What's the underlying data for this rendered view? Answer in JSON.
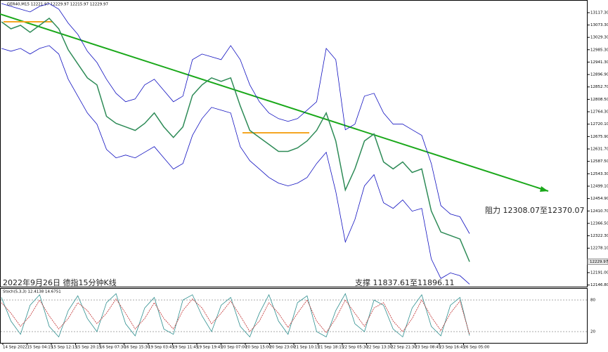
{
  "chart_data": {
    "type": "line",
    "title": "GER40,M15 12221.97 12229.97 12215.97 12229.97",
    "annotations": [
      "2022年9月26日 德指15分钟K线",
      "支撑 11837.61至11896.11",
      "阻力 12308.07至12370.07"
    ],
    "current_price": {
      "value": 12229.97,
      "label": "12229.97"
    },
    "ylim": [
      12141,
      13160
    ],
    "yticks": [
      {
        "value": 13117.3,
        "label": "13117.30"
      },
      {
        "value": 13073.3,
        "label": "13073.30"
      },
      {
        "value": 13029.3,
        "label": "13029.30"
      },
      {
        "value": 12985.3,
        "label": "12985.30"
      },
      {
        "value": 12941.3,
        "label": "12941.30"
      },
      {
        "value": 12896.9,
        "label": "12896.90"
      },
      {
        "value": 12852.7,
        "label": "12852.70"
      },
      {
        "value": 12808.5,
        "label": "12808.50"
      },
      {
        "value": 12764.3,
        "label": "12764.30"
      },
      {
        "value": 12720.1,
        "label": "12720.10"
      },
      {
        "value": 12675.9,
        "label": "12675.90"
      },
      {
        "value": 12631.7,
        "label": "12631.70"
      },
      {
        "value": 12587.5,
        "label": "12587.50"
      },
      {
        "value": 12543.3,
        "label": "12543.30"
      },
      {
        "value": 12499.1,
        "label": "12499.10"
      },
      {
        "value": 12454.9,
        "label": "12454.90"
      },
      {
        "value": 12410.7,
        "label": "12410.70"
      },
      {
        "value": 12366.5,
        "label": "12366.50"
      },
      {
        "value": 12322.3,
        "label": "12322.30"
      },
      {
        "value": 12278.1,
        "label": "12278.10"
      },
      {
        "value": 12191,
        "label": "12191.00"
      },
      {
        "value": 12146.8,
        "label": "12146.80"
      }
    ],
    "x_labels": [
      "14 Sep 2022",
      "15 Sep 04:15",
      "15 Sep 12:15",
      "15 Sep 20:15",
      "16 Sep 07:30",
      "16 Sep 15:30",
      "19 Sep 03:45",
      "19 Sep 11:45",
      "19 Sep 19:45",
      "20 Sep 07:00",
      "20 Sep 15:00",
      "20 Sep 23:00",
      "21 Sep 10:15",
      "21 Sep 18:15",
      "22 Sep 05:30",
      "22 Sep 13:30",
      "22 Sep 21:30",
      "23 Sep 08:45",
      "23 Sep 16:45",
      "26 Sep 05:00"
    ],
    "series": [
      {
        "name": "GER40,M15",
        "color": "#2e8b57",
        "values": [
          13084.8,
          13059.9,
          13072.4,
          13047.4,
          13072.4,
          13097.3,
          13059.9,
          12985,
          12935,
          12885.1,
          12860.1,
          12747.8,
          12722.8,
          12710.3,
          12697.8,
          12722.8,
          12760.2,
          12710.3,
          12672.8,
          12710.3,
          12822.7,
          12860.1,
          12885.1,
          12872.6,
          12885.1,
          12785.2,
          12697.8,
          12672.8,
          12647.9,
          12622.9,
          12622.9,
          12635.4,
          12660.3,
          12697.8,
          12760.2,
          12660.3,
          12485.5,
          12560.5,
          12660.3,
          12685.3,
          12585.4,
          12560.5,
          12585.4,
          12547.9,
          12560.5,
          12410.6,
          12335.8,
          12323.3,
          12310.8,
          12229.97
        ]
      },
      {
        "name": "Upper",
        "color": "#1010c0",
        "values": [
          13150,
          13140,
          13130,
          13120,
          13140,
          13150,
          13130,
          13080,
          13040,
          12980,
          12940,
          12880,
          12830,
          12800,
          12810,
          12860,
          12880,
          12840,
          12800,
          12820,
          12950,
          12970,
          12960,
          12950,
          13000,
          12950,
          12860,
          12800,
          12760,
          12740,
          12730,
          12740,
          12770,
          12800,
          12990,
          12950,
          12700,
          12720,
          12820,
          12830,
          12760,
          12720,
          12720,
          12700,
          12680,
          12580,
          12430,
          12400,
          12390,
          12330
        ]
      },
      {
        "name": "Lower",
        "color": "#1010c0",
        "values": [
          12990,
          12980,
          12990,
          12970,
          12990,
          13000,
          12970,
          12880,
          12820,
          12760,
          12720,
          12630,
          12600,
          12610,
          12600,
          12620,
          12640,
          12600,
          12560,
          12580,
          12680,
          12740,
          12780,
          12770,
          12760,
          12640,
          12590,
          12560,
          12530,
          12510,
          12500,
          12510,
          12530,
          12580,
          12620,
          12480,
          12300,
          12380,
          12500,
          12540,
          12440,
          12420,
          12450,
          12410,
          12420,
          12240,
          12170,
          12190,
          12180,
          12150
        ]
      }
    ],
    "stoch": {
      "label": "Stoch(5,3,3) 12.4138 14.6751",
      "ylim": [
        0,
        100
      ],
      "yticks": [
        80,
        20
      ],
      "series": [
        {
          "name": "Main",
          "color": "#2f8f8f",
          "values": [
            85,
            40,
            15,
            70,
            90,
            30,
            10,
            60,
            88,
            45,
            20,
            75,
            92,
            35,
            12,
            65,
            85,
            25,
            15,
            80,
            90,
            50,
            20,
            70,
            85,
            30,
            10,
            55,
            90,
            40,
            15,
            75,
            88,
            20,
            10,
            60,
            92,
            35,
            20,
            80,
            70,
            25,
            10,
            65,
            90,
            30,
            12,
            70,
            85,
            12.4138
          ]
        },
        {
          "name": "Signal",
          "color": "#c03030",
          "values": [
            75,
            55,
            30,
            50,
            80,
            50,
            25,
            45,
            75,
            60,
            35,
            55,
            82,
            55,
            25,
            45,
            75,
            45,
            25,
            60,
            82,
            65,
            35,
            55,
            78,
            50,
            20,
            40,
            75,
            55,
            28,
            55,
            80,
            40,
            18,
            45,
            80,
            55,
            30,
            65,
            75,
            40,
            20,
            45,
            80,
            48,
            22,
            55,
            78,
            14.6751
          ]
        }
      ]
    }
  }
}
